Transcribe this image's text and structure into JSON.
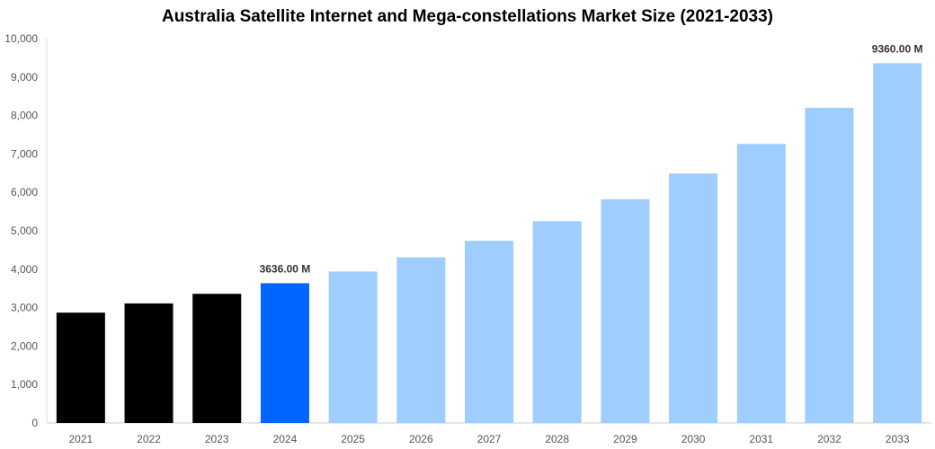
{
  "chart_data": {
    "type": "bar",
    "title": "Australia Satellite Internet and Mega-constellations Market Size (2021-2033)",
    "xlabel": "",
    "ylabel": "",
    "ylim": [
      0,
      10000
    ],
    "yticks": [
      0,
      1000,
      2000,
      3000,
      4000,
      5000,
      6000,
      7000,
      8000,
      9000,
      10000
    ],
    "ytick_labels": [
      "0",
      "1,000",
      "2,000",
      "3,000",
      "4,000",
      "5,000",
      "6,000",
      "7,000",
      "8,000",
      "9,000",
      "10,000"
    ],
    "categories": [
      "2021",
      "2022",
      "2023",
      "2024",
      "2025",
      "2026",
      "2027",
      "2028",
      "2029",
      "2030",
      "2031",
      "2032",
      "2033"
    ],
    "values": [
      2870,
      3110,
      3360,
      3636,
      3940,
      4310,
      4740,
      5250,
      5820,
      6490,
      7260,
      8200,
      9360
    ],
    "bar_colors": [
      "#000000",
      "#000000",
      "#000000",
      "#0066ff",
      "#a0cdff",
      "#a0cdff",
      "#a0cdff",
      "#a0cdff",
      "#a0cdff",
      "#a0cdff",
      "#a0cdff",
      "#a0cdff",
      "#a0cdff"
    ],
    "data_labels": {
      "3": "3636.00 M",
      "12": "9360.00 M"
    },
    "grid": false
  }
}
